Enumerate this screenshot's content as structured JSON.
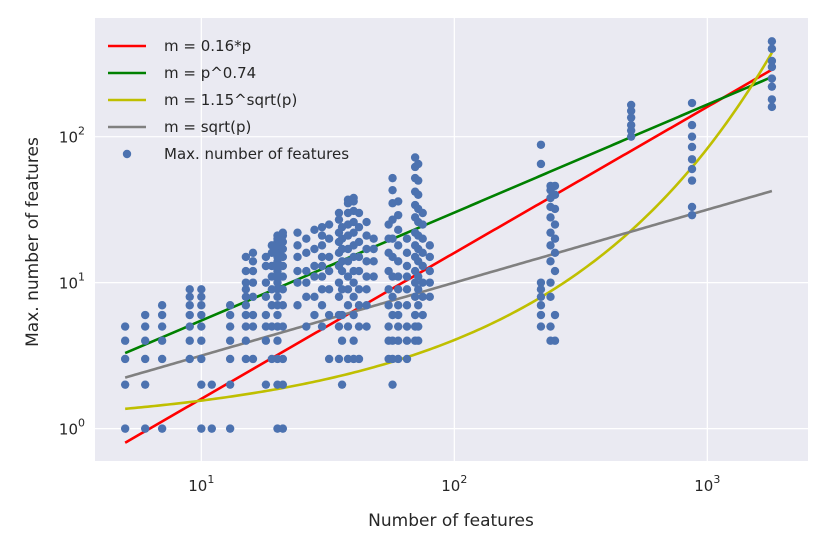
{
  "chart_data": {
    "type": "scatter",
    "title": "",
    "xlabel": "Number of features",
    "ylabel": "Max. number of features",
    "xscale": "log",
    "yscale": "log",
    "xlim": [
      3.8,
      2500
    ],
    "ylim": [
      0.6,
      650
    ],
    "grid": true,
    "legend_position": "top-left",
    "x_ticks": [
      {
        "value": 10,
        "base": "10",
        "exp": "1"
      },
      {
        "value": 100,
        "base": "10",
        "exp": "2"
      },
      {
        "value": 1000,
        "base": "10",
        "exp": "3"
      }
    ],
    "y_ticks": [
      {
        "value": 1,
        "base": "10",
        "exp": "0"
      },
      {
        "value": 10,
        "base": "10",
        "exp": "1"
      },
      {
        "value": 100,
        "base": "10",
        "exp": "2"
      }
    ],
    "series": [
      {
        "name": "m = 0.16*p",
        "kind": "line",
        "color": "#ff0000",
        "fn": "0.16*p"
      },
      {
        "name": "m = p^0.74",
        "kind": "line",
        "color": "#008000",
        "fn": "p^0.74"
      },
      {
        "name": "m = 1.15^sqrt(p)",
        "kind": "line",
        "color": "#bfbf00",
        "fn": "1.15^sqrt(p)"
      },
      {
        "name": "m = sqrt(p)",
        "kind": "line",
        "color": "#808080",
        "fn": "sqrt(p)"
      },
      {
        "name": "Max. number of features",
        "kind": "scatter",
        "color": "#4c72b0"
      }
    ],
    "line_x_range": [
      5,
      1800
    ],
    "points": [
      {
        "x": 5,
        "y": [
          1,
          2,
          3,
          4,
          5
        ]
      },
      {
        "x": 6,
        "y": [
          1,
          2,
          3,
          4,
          5,
          6
        ]
      },
      {
        "x": 7,
        "y": [
          1,
          3,
          4,
          5,
          6,
          7
        ]
      },
      {
        "x": 9,
        "y": [
          3,
          4,
          5,
          6,
          7,
          8,
          9
        ]
      },
      {
        "x": 10,
        "y": [
          1,
          2,
          3,
          4,
          5,
          6,
          7,
          8,
          9
        ]
      },
      {
        "x": 11,
        "y": [
          1,
          2
        ]
      },
      {
        "x": 13,
        "y": [
          1,
          2,
          3,
          4,
          5,
          6,
          7
        ]
      },
      {
        "x": 15,
        "y": [
          3,
          4,
          5,
          6,
          7,
          8,
          9,
          10,
          12,
          15
        ]
      },
      {
        "x": 16,
        "y": [
          3,
          5,
          6,
          8,
          10,
          12,
          14,
          16
        ]
      },
      {
        "x": 18,
        "y": [
          2,
          4,
          5,
          6,
          8,
          10,
          13,
          15
        ]
      },
      {
        "x": 19,
        "y": [
          3,
          5,
          7,
          9,
          11,
          13,
          16,
          18
        ]
      },
      {
        "x": 20,
        "y": [
          1,
          2,
          3,
          4,
          5,
          6,
          7,
          8,
          9,
          10,
          11,
          12,
          13,
          14,
          15,
          16,
          17,
          18,
          19,
          20,
          21
        ]
      },
      {
        "x": 21,
        "y": [
          1,
          2,
          3,
          5,
          7,
          9,
          11,
          13,
          15,
          17,
          19,
          21,
          22
        ]
      },
      {
        "x": 24,
        "y": [
          7,
          10,
          12,
          15,
          18,
          22
        ]
      },
      {
        "x": 26,
        "y": [
          5,
          8,
          10,
          12,
          16,
          20
        ]
      },
      {
        "x": 28,
        "y": [
          6,
          8,
          11,
          13,
          17,
          23
        ]
      },
      {
        "x": 30,
        "y": [
          5,
          7,
          9,
          11,
          13,
          15,
          18,
          21,
          24
        ]
      },
      {
        "x": 32,
        "y": [
          3,
          6,
          9,
          12,
          15,
          20,
          25
        ]
      },
      {
        "x": 35,
        "y": [
          3,
          5,
          6,
          8,
          10,
          13,
          16,
          19,
          22,
          27,
          30
        ]
      },
      {
        "x": 36,
        "y": [
          2,
          4,
          6,
          9,
          12,
          14,
          17,
          20,
          24
        ]
      },
      {
        "x": 38,
        "y": [
          3,
          5,
          7,
          9,
          11,
          14,
          17,
          21,
          25,
          30,
          35,
          37
        ]
      },
      {
        "x": 40,
        "y": [
          3,
          4,
          6,
          8,
          10,
          12,
          15,
          18,
          22,
          26,
          31,
          36,
          38
        ]
      },
      {
        "x": 42,
        "y": [
          3,
          5,
          7,
          9,
          12,
          15,
          19,
          24,
          30
        ]
      },
      {
        "x": 45,
        "y": [
          5,
          7,
          9,
          11,
          14,
          17,
          21,
          26
        ]
      },
      {
        "x": 48,
        "y": [
          11,
          14,
          17,
          20
        ]
      },
      {
        "x": 55,
        "y": [
          3,
          4,
          5,
          7,
          9,
          12,
          16,
          20,
          25
        ]
      },
      {
        "x": 57,
        "y": [
          2,
          3,
          4,
          6,
          8,
          11,
          15,
          20,
          27,
          35,
          43,
          52
        ]
      },
      {
        "x": 60,
        "y": [
          3,
          4,
          5,
          6,
          7,
          9,
          11,
          14,
          18,
          23,
          29,
          36
        ]
      },
      {
        "x": 65,
        "y": [
          3,
          4,
          5,
          7,
          9,
          11,
          13,
          16,
          20
        ]
      },
      {
        "x": 70,
        "y": [
          4,
          5,
          6,
          8,
          10,
          12,
          15,
          18,
          22,
          28,
          34,
          42,
          52,
          62,
          72
        ]
      },
      {
        "x": 72,
        "y": [
          4,
          5,
          7,
          9,
          11,
          14,
          17,
          21,
          26,
          32,
          40,
          50,
          65
        ]
      },
      {
        "x": 75,
        "y": [
          6,
          8,
          10,
          13,
          16,
          20,
          25,
          30
        ]
      },
      {
        "x": 80,
        "y": [
          8,
          10,
          12,
          15,
          18
        ]
      },
      {
        "x": 220,
        "y": [
          5,
          6,
          7,
          8,
          9,
          10,
          65,
          88
        ]
      },
      {
        "x": 240,
        "y": [
          4,
          5,
          8,
          10,
          14,
          18,
          22,
          28,
          33,
          38,
          43,
          46
        ]
      },
      {
        "x": 250,
        "y": [
          4,
          6,
          12,
          16,
          20,
          25,
          32,
          40,
          46
        ]
      },
      {
        "x": 500,
        "y": [
          100,
          110,
          120,
          135,
          150,
          165
        ]
      },
      {
        "x": 870,
        "y": [
          29,
          33,
          50,
          60,
          70,
          85,
          100,
          120,
          170
        ]
      },
      {
        "x": 1800,
        "y": [
          160,
          180,
          220,
          250,
          300,
          330,
          400,
          450
        ]
      }
    ]
  }
}
